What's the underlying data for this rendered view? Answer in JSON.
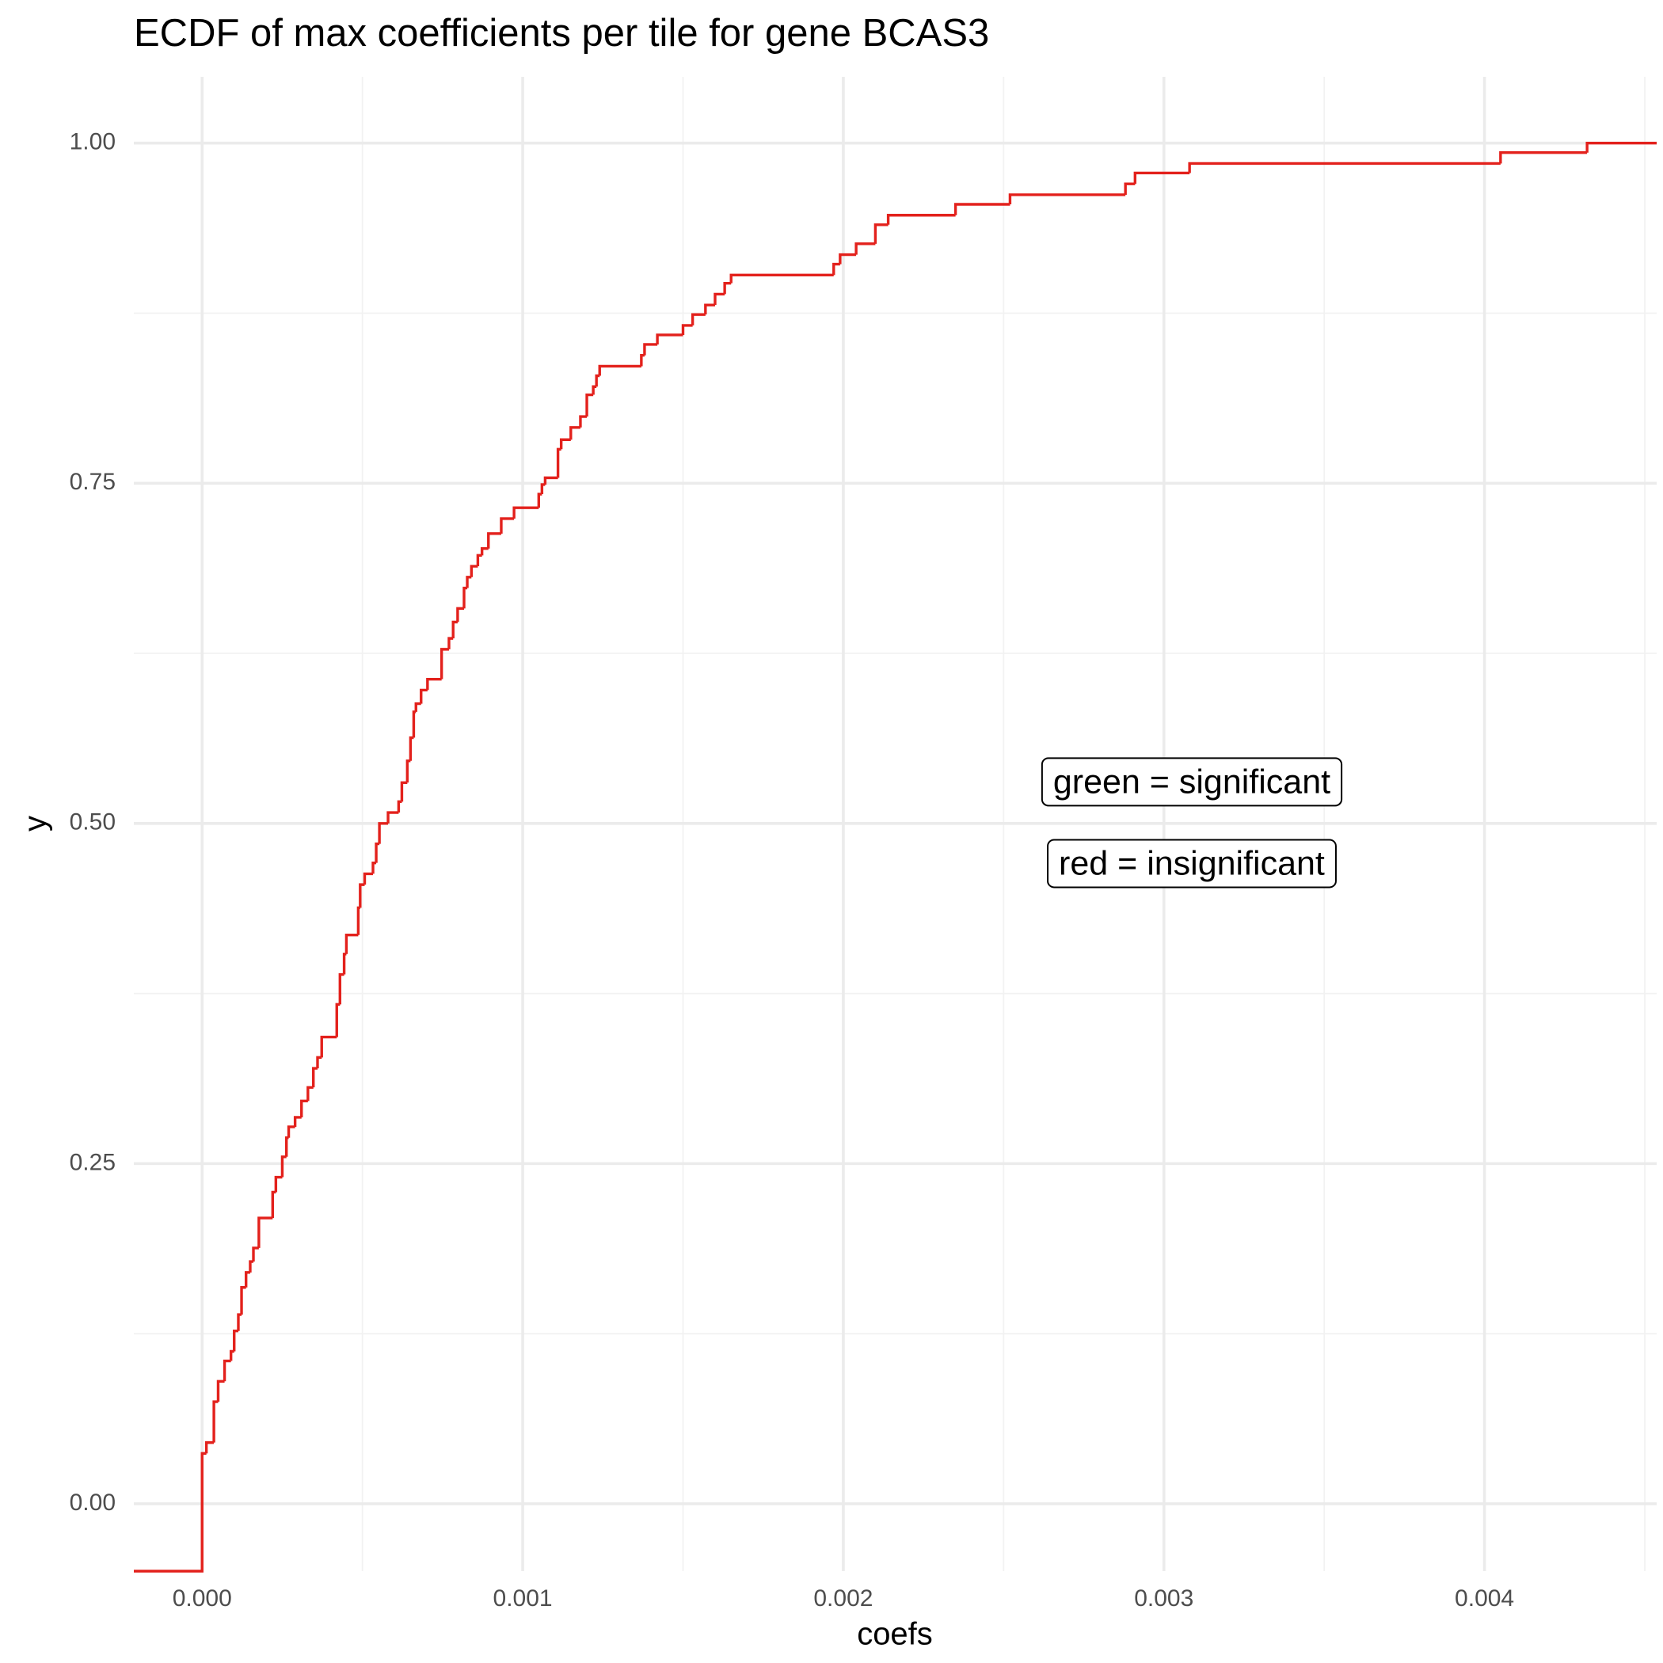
{
  "chart_data": {
    "type": "step",
    "title": "ECDF of max coefficients per tile for gene BCAS3",
    "x_label": "coefs",
    "y_label": "y",
    "color": "#e3211c",
    "grid": true,
    "xlim": [
      -0.000213,
      0.004537
    ],
    "ylim": [
      -0.0495,
      1.0487
    ],
    "xticks": [
      {
        "value": 0,
        "label": "0.000"
      },
      {
        "value": 0.001,
        "label": "0.001"
      },
      {
        "value": 0.002,
        "label": "0.002"
      },
      {
        "value": 0.003,
        "label": "0.003"
      },
      {
        "value": 0.004,
        "label": "0.004"
      }
    ],
    "yticks": [
      {
        "value": 0,
        "label": "0.00"
      },
      {
        "value": 0.25,
        "label": "0.25"
      },
      {
        "value": 0.5,
        "label": "0.50"
      },
      {
        "value": 0.75,
        "label": "0.75"
      },
      {
        "value": 1,
        "label": "1.00"
      }
    ],
    "x_minor_ticks": [
      0.0005,
      0.0015,
      0.0025,
      0.0035,
      0.0045
    ],
    "y_minor_ticks": [
      0.125,
      0.375,
      0.625,
      0.875
    ],
    "x": [
      0,
      1.33e-05,
      3.67e-05,
      5e-05,
      7e-05,
      9e-05,
      0.0001,
      0.000113,
      0.000123,
      0.000137,
      0.00015,
      0.00016,
      0.000177,
      0.00022,
      0.00023,
      0.00025,
      0.000263,
      0.00027,
      0.00029,
      0.00031,
      0.00033,
      0.000347,
      0.00036,
      0.000373,
      0.00042,
      0.00043,
      0.000443,
      0.00045,
      0.000487,
      0.000493,
      0.000507,
      0.000533,
      0.000543,
      0.000553,
      0.00058,
      0.000613,
      0.000623,
      0.00064,
      0.00065,
      0.00066,
      0.000667,
      0.000683,
      0.000703,
      0.000747,
      0.00077,
      0.000783,
      0.000797,
      0.000817,
      0.000827,
      0.00084,
      0.00086,
      0.000873,
      0.000893,
      0.000933,
      0.000973,
      0.00105,
      0.00106,
      0.00107,
      0.00111,
      0.00112,
      0.00115,
      0.00118,
      0.0012,
      0.00122,
      0.00123,
      0.00124,
      0.00137,
      0.00138,
      0.00142,
      0.0015,
      0.00153,
      0.00157,
      0.0016,
      0.00163,
      0.00165,
      0.00197,
      0.00199,
      0.00204,
      0.0021,
      0.00214,
      0.00235,
      0.00252,
      0.00288,
      0.00291,
      0.00308,
      0.00405,
      0.00432
    ],
    "values": [
      0.037,
      0.045,
      0.075,
      0.09,
      0.105,
      0.112,
      0.127,
      0.139,
      0.159,
      0.17,
      0.178,
      0.188,
      0.21,
      0.229,
      0.24,
      0.255,
      0.269,
      0.277,
      0.284,
      0.296,
      0.306,
      0.32,
      0.328,
      0.343,
      0.367,
      0.389,
      0.404,
      0.418,
      0.438,
      0.455,
      0.463,
      0.471,
      0.485,
      0.5,
      0.508,
      0.516,
      0.53,
      0.546,
      0.563,
      0.582,
      0.588,
      0.598,
      0.606,
      0.628,
      0.636,
      0.648,
      0.658,
      0.673,
      0.681,
      0.689,
      0.697,
      0.702,
      0.713,
      0.724,
      0.732,
      0.742,
      0.749,
      0.754,
      0.775,
      0.782,
      0.791,
      0.799,
      0.815,
      0.821,
      0.829,
      0.836,
      0.844,
      0.852,
      0.859,
      0.866,
      0.874,
      0.881,
      0.889,
      0.897,
      0.903,
      0.911,
      0.918,
      0.926,
      0.94,
      0.947,
      0.955,
      0.962,
      0.97,
      0.978,
      0.985,
      0.993,
      1
    ],
    "annotations": [
      {
        "text": "green = significant",
        "x": 0.003087,
        "y": 0.529
      },
      {
        "text": "red = insignificant",
        "x": 0.003087,
        "y": 0.469
      }
    ]
  }
}
